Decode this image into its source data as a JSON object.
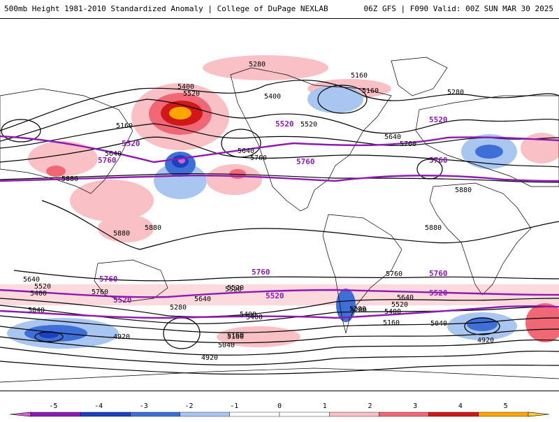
{
  "header": {
    "title_left": "500mb Height 1981-2010 Standardized Anomaly | College of DuPage NEXLAB",
    "title_right": "06Z GFS | F090 Valid: 00Z SUN MAR 30 2025"
  },
  "map": {
    "contour_labels_black": [
      "5280",
      "5160",
      "5160",
      "5280",
      "5400",
      "5520",
      "5400",
      "5520",
      "5160",
      "5640",
      "5760",
      "5640",
      "5760",
      "5640",
      "5880",
      "5880",
      "5880",
      "5880",
      "5880",
      "5640",
      "5520",
      "5400",
      "5760",
      "5520",
      "5400",
      "5280",
      "5040",
      "4920",
      "5040",
      "5160",
      "4920",
      "5160",
      "5280",
      "5400",
      "5520",
      "5640",
      "5760",
      "5640",
      "5520",
      "5400",
      "5160",
      "5040",
      "4920",
      "5280",
      "5400",
      "5520",
      "5640",
      "5280",
      "5520",
      "5400",
      "5160"
    ],
    "contour_labels_purple": [
      "5520",
      "5760",
      "5520",
      "5760",
      "5760",
      "5520",
      "5760",
      "5760",
      "5520",
      "5760",
      "5520",
      "5520"
    ]
  },
  "colorbar": {
    "ticks": [
      "-5",
      "-4",
      "-3",
      "-2",
      "-1",
      "0",
      "1",
      "2",
      "3",
      "4",
      "5"
    ],
    "colors": [
      "#d163d1",
      "#8e1ab3",
      "#1a3fbf",
      "#3d6fd6",
      "#a9c6f0",
      "#ffffff",
      "#ffffff",
      "#f9c0c6",
      "#f06876",
      "#d11818",
      "#ffa500",
      "#ffcc33"
    ]
  }
}
